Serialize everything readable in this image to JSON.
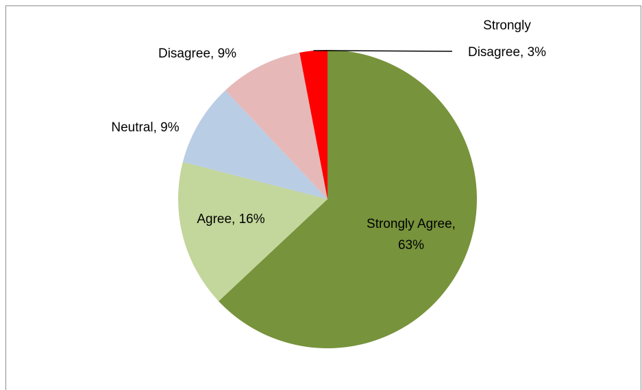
{
  "chart_data": {
    "type": "pie",
    "title": "",
    "start_angle_deg": 0,
    "direction": "clockwise",
    "slices": [
      {
        "label": "Strongly Agree",
        "value": 63,
        "color": "#77933c",
        "label_lines": [
          "Strongly Agree,",
          "63%"
        ]
      },
      {
        "label": "Agree",
        "value": 16,
        "color": "#c3d69b",
        "label_lines": [
          "Agree, 16%"
        ]
      },
      {
        "label": "Neutral",
        "value": 9,
        "color": "#b9cde5",
        "label_lines": [
          "Neutral, 9%"
        ]
      },
      {
        "label": "Disagree",
        "value": 9,
        "color": "#e6b9b8",
        "label_lines": [
          "Disagree, 9%"
        ]
      },
      {
        "label": "Strongly Disagree",
        "value": 3,
        "color": "#ff0000",
        "label_lines": [
          "Strongly",
          "Disagree, 3%"
        ]
      }
    ],
    "legend": "none"
  }
}
